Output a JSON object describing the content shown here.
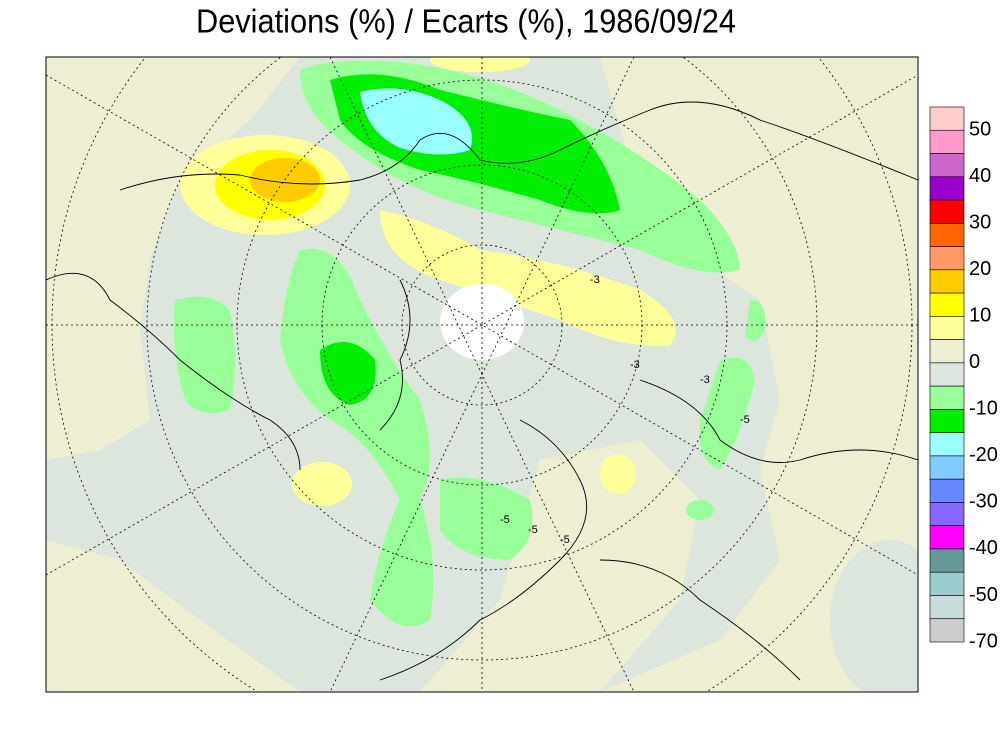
{
  "title": "Deviations (%) / Ecarts (%), 1986/09/24",
  "legend": {
    "colors": [
      "#ffcccc",
      "#ff99cc",
      "#cc66cc",
      "#9900cc",
      "#ff0000",
      "#ff6600",
      "#ff9966",
      "#ffcc00",
      "#ffff00",
      "#ffff99",
      "#eeeed2",
      "#dde6dc",
      "#99ff99",
      "#00ee00",
      "#99ffff",
      "#80ccff",
      "#6688ff",
      "#8866ff",
      "#ff00ff",
      "#669999",
      "#99cccc",
      "#c8dcdc",
      "#cccccc"
    ],
    "labels": [
      50,
      40,
      30,
      20,
      10,
      0,
      -10,
      -20,
      -30,
      -40,
      -50,
      -70
    ]
  },
  "map": {
    "contour_labels": [
      "-5",
      "-3",
      "-5",
      "-5",
      "-3",
      "-3",
      "-5"
    ]
  }
}
